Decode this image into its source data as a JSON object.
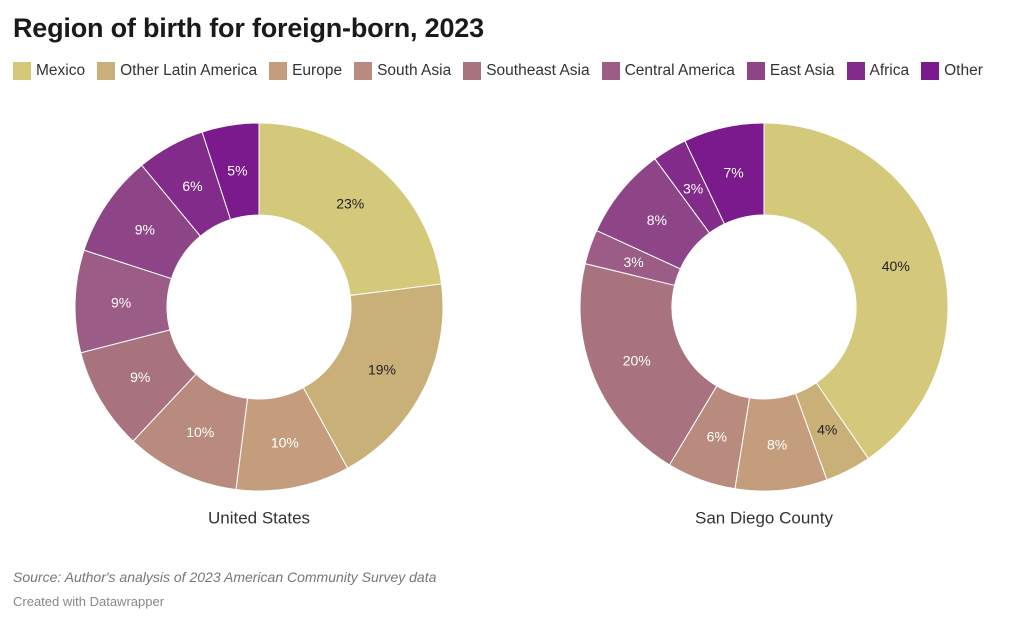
{
  "title": "Region of birth for foreign-born, 2023",
  "legend": [
    {
      "label": "Mexico",
      "color": "#d4c87a"
    },
    {
      "label": "Other Latin America",
      "color": "#c9b079"
    },
    {
      "label": "Europe",
      "color": "#c49e7c"
    },
    {
      "label": "South Asia",
      "color": "#b98a7e"
    },
    {
      "label": "Southeast Asia",
      "color": "#a8737f"
    },
    {
      "label": "Central America",
      "color": "#9b5c85"
    },
    {
      "label": "East Asia",
      "color": "#8e4587"
    },
    {
      "label": "Africa",
      "color": "#832b8a"
    },
    {
      "label": "Other",
      "color": "#7a1a8c"
    }
  ],
  "chart_data": [
    {
      "type": "pie",
      "title": "United States",
      "donut": true,
      "categories": [
        "Mexico",
        "Other Latin America",
        "Europe",
        "South Asia",
        "Southeast Asia",
        "Central America",
        "East Asia",
        "Africa",
        "Other"
      ],
      "values": [
        23,
        19,
        10,
        10,
        9,
        9,
        9,
        6,
        5
      ],
      "labels": [
        "23%",
        "19%",
        "10%",
        "10%",
        "9%",
        "9%",
        "9%",
        "6%",
        "5%"
      ]
    },
    {
      "type": "pie",
      "title": "San Diego County",
      "donut": true,
      "categories": [
        "Mexico",
        "Other Latin America",
        "Europe",
        "South Asia",
        "Southeast Asia",
        "Central America",
        "East Asia",
        "Africa",
        "Other"
      ],
      "values": [
        40,
        4,
        8,
        6,
        20,
        3,
        8,
        3,
        7
      ],
      "labels": [
        "40%",
        "4%",
        "8%",
        "6%",
        "20%",
        "3%",
        "8%",
        "3%",
        "7%"
      ]
    }
  ],
  "source": "Source: Author's analysis of 2023 American Community Survey data",
  "credit": "Created with Datawrapper"
}
